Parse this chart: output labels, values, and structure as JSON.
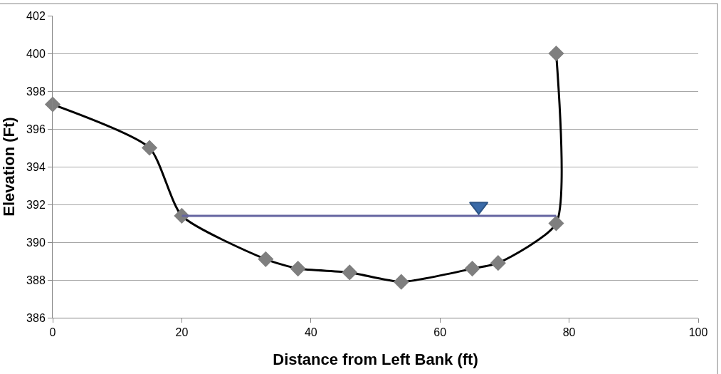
{
  "chart_data": {
    "type": "line",
    "xlabel": "Distance from Left Bank (ft)",
    "ylabel": "Elevation (Ft)",
    "xlim": [
      0,
      100
    ],
    "xticks": [
      0,
      20,
      40,
      60,
      80,
      100
    ],
    "ylim": [
      386,
      402
    ],
    "yticks": [
      386,
      388,
      390,
      392,
      394,
      396,
      398,
      400,
      402
    ],
    "grid": "y",
    "series": [
      {
        "color": "#000000",
        "marker": "none",
        "x": [
          0,
          15,
          20,
          33,
          38,
          46,
          54,
          65,
          69,
          78,
          78
        ],
        "values": [
          397.3,
          395.0,
          391.4,
          389.1,
          388.6,
          388.4,
          387.9,
          388.6,
          388.9,
          391.0,
          400.0
        ]
      },
      {
        "type": "scatter",
        "color": "#7f7f7f",
        "marker": "diamond",
        "x": [
          0,
          15,
          20,
          33,
          38,
          46,
          54,
          65,
          69,
          78,
          78
        ],
        "values": [
          397.3,
          395.0,
          391.4,
          389.1,
          388.6,
          388.4,
          387.9,
          388.6,
          388.9,
          391.0,
          400.0
        ]
      },
      {
        "color": "#6464a0",
        "marker": "none",
        "x": [
          20,
          78
        ],
        "values": [
          391.4,
          391.4
        ]
      },
      {
        "type": "scatter",
        "color": "#3a6aa8",
        "marker": "triangle",
        "x": [
          66
        ],
        "values": [
          391.9
        ]
      }
    ]
  }
}
